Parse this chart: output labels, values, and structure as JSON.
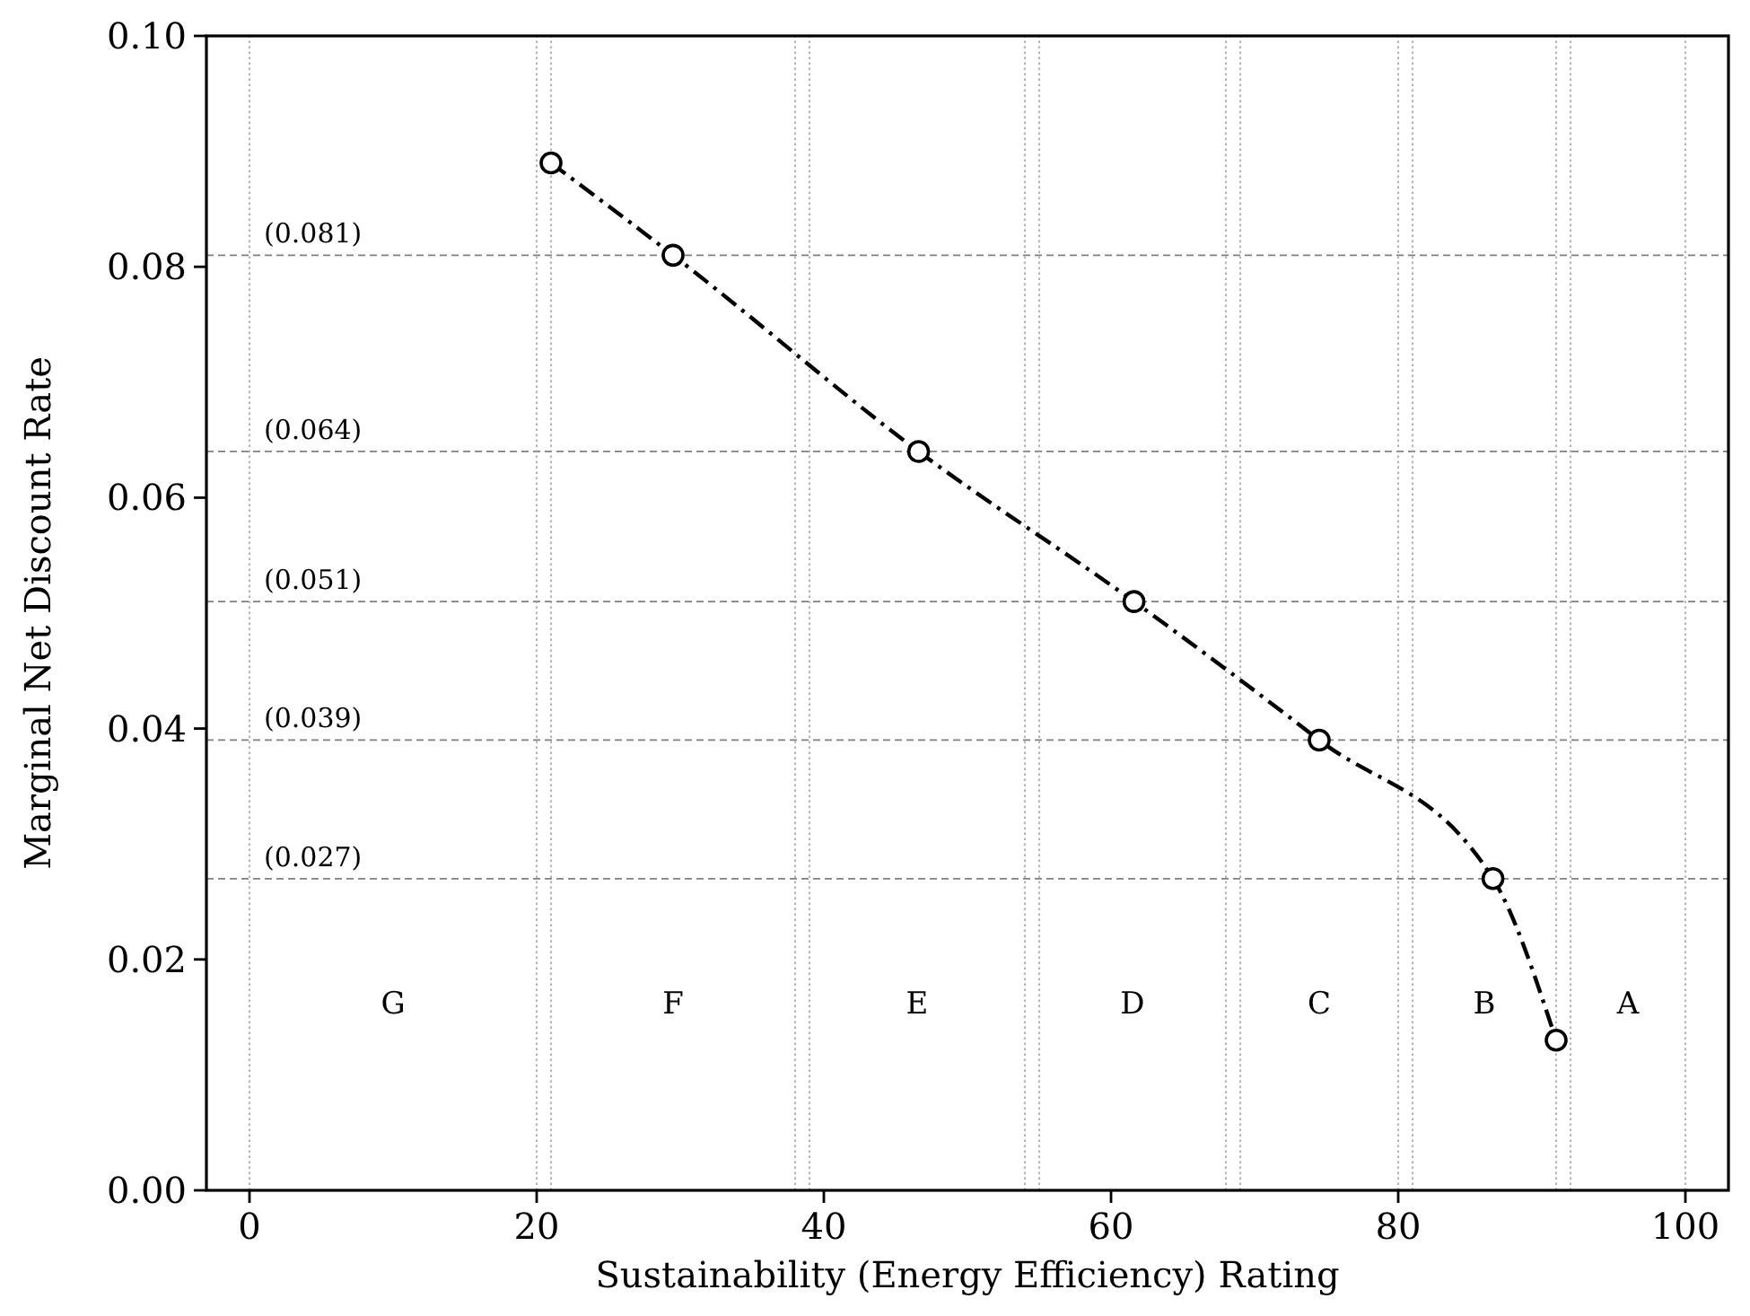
{
  "chart_data": {
    "type": "line",
    "xlabel": "Sustainability (Energy Efficiency) Rating",
    "ylabel": "Marginal Net Discount Rate",
    "xlim": [
      -3,
      103
    ],
    "xticks": [
      0,
      20,
      40,
      60,
      80,
      100
    ],
    "ylim": [
      0,
      0.1
    ],
    "yticks": [
      {
        "value": 0,
        "label": "0.00"
      },
      {
        "value": 0.02,
        "label": "0.02"
      },
      {
        "value": 0.04,
        "label": "0.04"
      },
      {
        "value": 0.06,
        "label": "0.06"
      },
      {
        "value": 0.08,
        "label": "0.08"
      },
      {
        "value": 0.1,
        "label": "0.10"
      }
    ],
    "series": [
      {
        "color": "#000000",
        "x": [
          21,
          29.5,
          46.6,
          61.6,
          74.5,
          86.6,
          91
        ],
        "values": [
          0.089,
          0.081,
          0.064,
          0.051,
          0.039,
          0.027,
          0.013
        ]
      }
    ],
    "marker": "circle",
    "line_style": "dashdot",
    "grid": false,
    "ref_lines": [
      {
        "axis": "y",
        "value": 0.081,
        "label": "(0.081)",
        "color": "#808080",
        "line_style": "dashed"
      },
      {
        "axis": "y",
        "value": 0.064,
        "label": "(0.064)",
        "color": "#808080",
        "line_style": "dashed"
      },
      {
        "axis": "y",
        "value": 0.051,
        "label": "(0.051)",
        "color": "#808080",
        "line_style": "dashed"
      },
      {
        "axis": "y",
        "value": 0.039,
        "label": "(0.039)",
        "color": "#808080",
        "line_style": "dashed"
      },
      {
        "axis": "y",
        "value": 0.027,
        "label": "(0.027)",
        "color": "#808080",
        "line_style": "dashed"
      },
      {
        "axis": "x",
        "value": 0,
        "color": "#a0a0a0",
        "line_style": "dotted"
      },
      {
        "axis": "x",
        "value": 20,
        "color": "#a0a0a0",
        "line_style": "dotted"
      },
      {
        "axis": "x",
        "value": 21,
        "color": "#a0a0a0",
        "line_style": "dotted"
      },
      {
        "axis": "x",
        "value": 38,
        "color": "#a0a0a0",
        "line_style": "dotted"
      },
      {
        "axis": "x",
        "value": 39,
        "color": "#a0a0a0",
        "line_style": "dotted"
      },
      {
        "axis": "x",
        "value": 54,
        "color": "#a0a0a0",
        "line_style": "dotted"
      },
      {
        "axis": "x",
        "value": 55,
        "color": "#a0a0a0",
        "line_style": "dotted"
      },
      {
        "axis": "x",
        "value": 68,
        "color": "#a0a0a0",
        "line_style": "dotted"
      },
      {
        "axis": "x",
        "value": 69,
        "color": "#a0a0a0",
        "line_style": "dotted"
      },
      {
        "axis": "x",
        "value": 80,
        "color": "#a0a0a0",
        "line_style": "dotted"
      },
      {
        "axis": "x",
        "value": 81,
        "color": "#a0a0a0",
        "line_style": "dotted"
      },
      {
        "axis": "x",
        "value": 91,
        "color": "#a0a0a0",
        "line_style": "dotted"
      },
      {
        "axis": "x",
        "value": 92,
        "color": "#a0a0a0",
        "line_style": "dotted"
      },
      {
        "axis": "x",
        "value": 100,
        "color": "#a0a0a0",
        "line_style": "dotted"
      }
    ],
    "annotations": [
      "G",
      "F",
      "E",
      "D",
      "C",
      "B",
      "A"
    ]
  }
}
